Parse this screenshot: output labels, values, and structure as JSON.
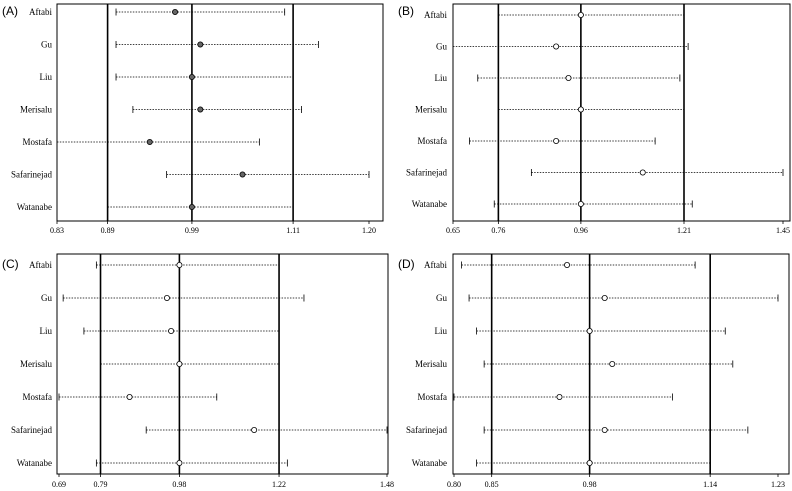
{
  "chart_data": [
    {
      "panel": "(A)",
      "type": "forest",
      "xticks": [
        0.83,
        0.89,
        0.99,
        1.11,
        1.2
      ],
      "xlim": [
        0.83,
        1.2
      ],
      "reference_lines": [
        0.89,
        0.99,
        1.11
      ],
      "marker": "filled",
      "studies": [
        {
          "label": "Aftabi",
          "estimate": 0.97,
          "lower": 0.9,
          "upper": 1.1
        },
        {
          "label": "Gu",
          "estimate": 1.0,
          "lower": 0.9,
          "upper": 1.14
        },
        {
          "label": "Liu",
          "estimate": 0.99,
          "lower": 0.9,
          "upper": 1.11
        },
        {
          "label": "Merisalu",
          "estimate": 1.0,
          "lower": 0.92,
          "upper": 1.12
        },
        {
          "label": "Mostafa",
          "estimate": 0.94,
          "lower": 0.83,
          "upper": 1.07
        },
        {
          "label": "Safarinejad",
          "estimate": 1.05,
          "lower": 0.96,
          "upper": 1.2
        },
        {
          "label": "Watanabe",
          "estimate": 0.99,
          "lower": 0.89,
          "upper": 1.11
        }
      ]
    },
    {
      "panel": "(B)",
      "type": "forest",
      "xticks": [
        0.65,
        0.76,
        0.96,
        1.21,
        1.45
      ],
      "xlim": [
        0.65,
        1.45
      ],
      "reference_lines": [
        0.76,
        0.96,
        1.21
      ],
      "marker": "open",
      "studies": [
        {
          "label": "Aftabi",
          "estimate": 0.96,
          "lower": 0.76,
          "upper": 1.21
        },
        {
          "label": "Gu",
          "estimate": 0.9,
          "lower": 0.65,
          "upper": 1.22
        },
        {
          "label": "Liu",
          "estimate": 0.93,
          "lower": 0.71,
          "upper": 1.2
        },
        {
          "label": "Merisalu",
          "estimate": 0.96,
          "lower": 0.76,
          "upper": 1.21
        },
        {
          "label": "Mostafa",
          "estimate": 0.9,
          "lower": 0.69,
          "upper": 1.14
        },
        {
          "label": "Safarinejad",
          "estimate": 1.11,
          "lower": 0.84,
          "upper": 1.45
        },
        {
          "label": "Watanabe",
          "estimate": 0.96,
          "lower": 0.75,
          "upper": 1.23
        }
      ]
    },
    {
      "panel": "(C)",
      "type": "forest",
      "xticks": [
        0.69,
        0.79,
        0.98,
        1.22,
        1.48
      ],
      "xlim": [
        0.69,
        1.48
      ],
      "reference_lines": [
        0.79,
        0.98,
        1.22
      ],
      "marker": "open",
      "studies": [
        {
          "label": "Aftabi",
          "estimate": 0.98,
          "lower": 0.78,
          "upper": 1.22
        },
        {
          "label": "Gu",
          "estimate": 0.95,
          "lower": 0.7,
          "upper": 1.28
        },
        {
          "label": "Liu",
          "estimate": 0.96,
          "lower": 0.75,
          "upper": 1.22
        },
        {
          "label": "Merisalu",
          "estimate": 0.98,
          "lower": 0.79,
          "upper": 1.22
        },
        {
          "label": "Mostafa",
          "estimate": 0.86,
          "lower": 0.69,
          "upper": 1.07
        },
        {
          "label": "Safarinejad",
          "estimate": 1.16,
          "lower": 0.9,
          "upper": 1.48
        },
        {
          "label": "Watanabe",
          "estimate": 0.98,
          "lower": 0.78,
          "upper": 1.24
        }
      ]
    },
    {
      "panel": "(D)",
      "type": "forest",
      "xticks": [
        0.8,
        0.85,
        0.98,
        1.14,
        1.23
      ],
      "xlim": [
        0.8,
        1.23
      ],
      "reference_lines": [
        0.85,
        0.98,
        1.14
      ],
      "marker": "open",
      "studies": [
        {
          "label": "Aftabi",
          "estimate": 0.95,
          "lower": 0.81,
          "upper": 1.12
        },
        {
          "label": "Gu",
          "estimate": 1.0,
          "lower": 0.82,
          "upper": 1.23
        },
        {
          "label": "Liu",
          "estimate": 0.98,
          "lower": 0.83,
          "upper": 1.16
        },
        {
          "label": "Merisalu",
          "estimate": 1.01,
          "lower": 0.84,
          "upper": 1.17
        },
        {
          "label": "Mostafa",
          "estimate": 0.94,
          "lower": 0.8,
          "upper": 1.09
        },
        {
          "label": "Safarinejad",
          "estimate": 1.0,
          "lower": 0.84,
          "upper": 1.19
        },
        {
          "label": "Watanabe",
          "estimate": 0.98,
          "lower": 0.83,
          "upper": 1.14
        }
      ]
    }
  ]
}
